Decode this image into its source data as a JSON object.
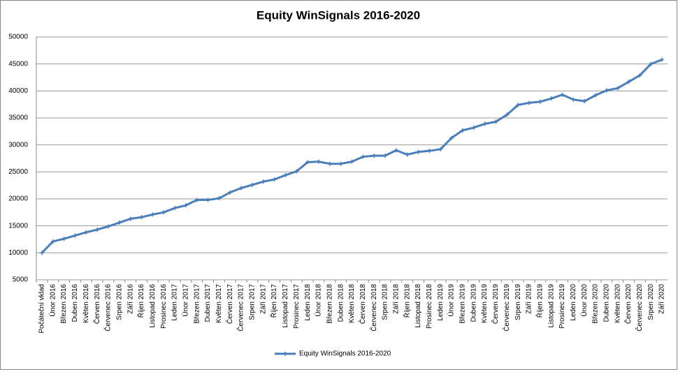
{
  "chart_data": {
    "type": "line",
    "title": "Equity WinSignals 2016-2020",
    "categories": [
      "Počáteční vklad",
      "Únor 2016",
      "Březen 2016",
      "Duben 2016",
      "Květen 2016",
      "Červen 2016",
      "Červenec 2016",
      "Srpen 2016",
      "Září 2016",
      "Říjen 2016",
      "Listopad 2016",
      "Prosinec 2016",
      "Leden 2017",
      "Únor 2017",
      "Březen 2017",
      "Duben 2017",
      "Květen 2017",
      "Červen 2017",
      "Červenec 2017",
      "Srpen 2017",
      "Září 2017",
      "Říjen 2017",
      "Listopad 2017",
      "Prosinec 2017",
      "Leden 2018",
      "Únor 2018",
      "Březen 2018",
      "Duben 2018",
      "Květen 2018",
      "Červen 2018",
      "Červenec 2018",
      "Srpen 2018",
      "Září 2018",
      "Říjen 2018",
      "Listopad 2018",
      "Prosinec 2018",
      "Leden 2019",
      "Únor 2019",
      "Březen 2019",
      "Duben 2019",
      "Květen 2019",
      "Červen 2019",
      "Červenec 2019",
      "Srpen 2019",
      "Září 2019",
      "Říjen 2019",
      "Listopad 2019",
      "Prosinec 2019",
      "Leden 2020",
      "Únor 2020",
      "Březen 2020",
      "Duben 2020",
      "Květen 2020",
      "Červen 2020",
      "Červenec 2020",
      "Srpen 2020",
      "Září 2020"
    ],
    "series": [
      {
        "name": "Equity WinSignals 2016-2020",
        "color": "#4a7ebb",
        "values": [
          10000,
          12100,
          12600,
          13200,
          13800,
          14300,
          14900,
          15600,
          16300,
          16600,
          17100,
          17500,
          18300,
          18800,
          19800,
          19800,
          20100,
          21200,
          22000,
          22600,
          23200,
          23600,
          24400,
          25100,
          26800,
          26900,
          26500,
          26500,
          26900,
          27800,
          28000,
          28000,
          29000,
          28200,
          28700,
          28900,
          29200,
          31300,
          32700,
          33200,
          33900,
          34300,
          35600,
          37400,
          37800,
          38000,
          38600,
          39300,
          38400,
          38100,
          39200,
          40100,
          40500,
          41700,
          42900,
          45000,
          45800
        ]
      }
    ],
    "ylim": [
      5000,
      50000
    ],
    "yticks": [
      5000,
      10000,
      15000,
      20000,
      25000,
      30000,
      35000,
      40000,
      45000,
      50000
    ],
    "grid": true,
    "legend": "bottom"
  }
}
